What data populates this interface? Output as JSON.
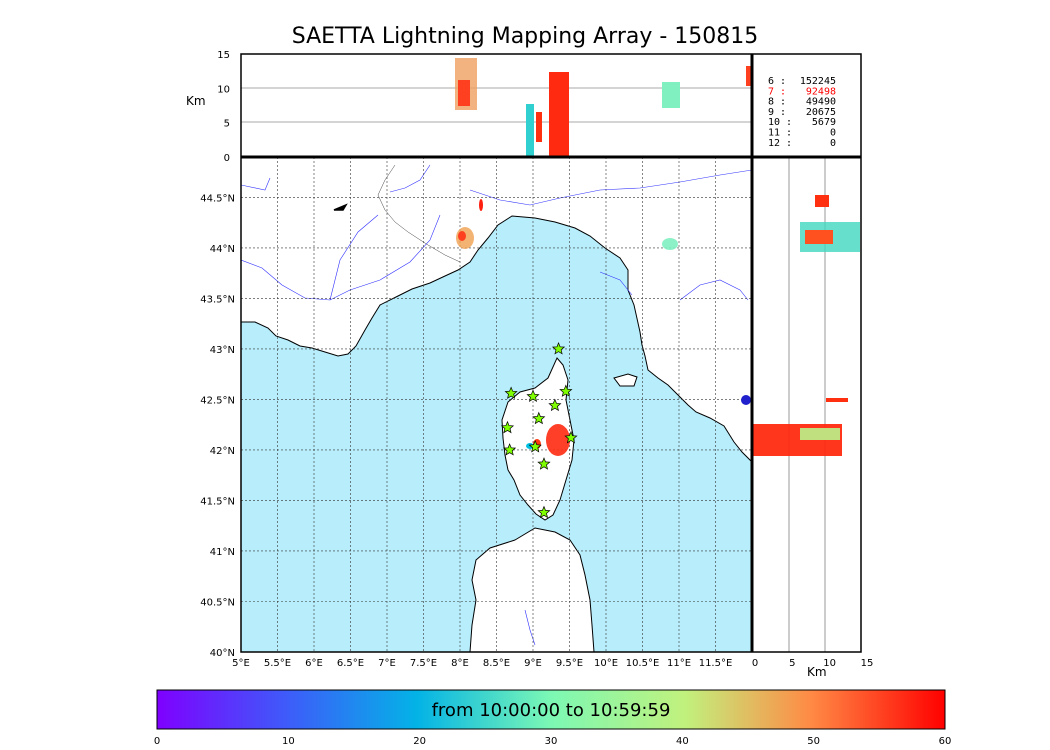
{
  "title": "SAETTA Lightning Mapping Array - 150815",
  "axes": {
    "lon_ticks": [
      "5°E",
      "5.5°E",
      "6°E",
      "6.5°E",
      "7°E",
      "7.5°E",
      "8°E",
      "8.5°E",
      "9°E",
      "9.5°E",
      "10°E",
      "10.5°E",
      "11°E",
      "11.5°E"
    ],
    "lat_ticks": [
      "40°N",
      "40.5°N",
      "41°N",
      "41.5°N",
      "42°N",
      "42.5°N",
      "43°N",
      "43.5°N",
      "44°N",
      "44.5°N"
    ],
    "alt_ticks": [
      "0",
      "5",
      "10",
      "15"
    ],
    "alt_unit": "Km",
    "lon_range": [
      5,
      12
    ],
    "lat_range": [
      40,
      44.9
    ],
    "alt_range": [
      0,
      15
    ]
  },
  "station_counts": [
    {
      "label": "6  :",
      "value": "152245",
      "color": "#000000"
    },
    {
      "label": "7  :",
      "value": "92498",
      "color": "#ff0000"
    },
    {
      "label": "8  :",
      "value": "49490",
      "color": "#000000"
    },
    {
      "label": "9  :",
      "value": "20675",
      "color": "#000000"
    },
    {
      "label": "10 :",
      "value": "5679",
      "color": "#000000"
    },
    {
      "label": "11 :",
      "value": "0",
      "color": "#000000"
    },
    {
      "label": "12 :",
      "value": "0",
      "color": "#000000"
    }
  ],
  "colorbar": {
    "label": "from 10:00:00 to 10:59:59",
    "ticks": [
      "0",
      "10",
      "20",
      "30",
      "40",
      "50",
      "60"
    ],
    "range": [
      0,
      60
    ]
  },
  "colors": {
    "sea": "#b8eefc",
    "river": "#3333ff",
    "station": "#7fff00",
    "early": "#00c0e0",
    "late": "#ff2000"
  },
  "stations": [
    {
      "lon": 9.35,
      "lat": 43.0
    },
    {
      "lon": 8.7,
      "lat": 42.56
    },
    {
      "lon": 9.0,
      "lat": 42.53
    },
    {
      "lon": 9.45,
      "lat": 42.58
    },
    {
      "lon": 9.3,
      "lat": 42.44
    },
    {
      "lon": 9.08,
      "lat": 42.31
    },
    {
      "lon": 8.65,
      "lat": 42.22
    },
    {
      "lon": 9.52,
      "lat": 42.12
    },
    {
      "lon": 9.03,
      "lat": 42.03
    },
    {
      "lon": 8.68,
      "lat": 42.0
    },
    {
      "lon": 9.15,
      "lat": 41.86
    },
    {
      "lon": 9.15,
      "lat": 41.38
    }
  ]
}
